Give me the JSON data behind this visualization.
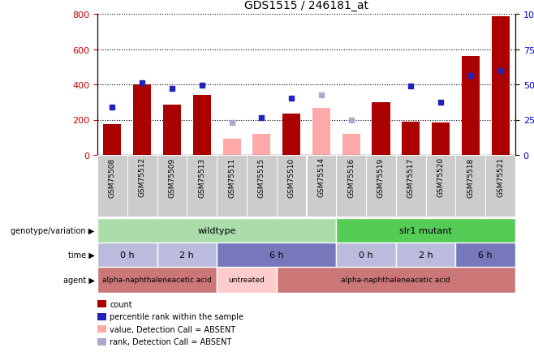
{
  "title": "GDS1515 / 246181_at",
  "samples": [
    "GSM75508",
    "GSM75512",
    "GSM75509",
    "GSM75513",
    "GSM75511",
    "GSM75515",
    "GSM75510",
    "GSM75514",
    "GSM75516",
    "GSM75519",
    "GSM75517",
    "GSM75520",
    "GSM75518",
    "GSM75521"
  ],
  "bar_counts": [
    175,
    400,
    285,
    340,
    0,
    0,
    235,
    0,
    0,
    300,
    190,
    185,
    560,
    785
  ],
  "bar_absent_values": [
    0,
    0,
    0,
    0,
    90,
    120,
    0,
    265,
    120,
    0,
    0,
    0,
    0,
    0
  ],
  "blue_squares": [
    270,
    410,
    375,
    395,
    null,
    210,
    320,
    null,
    null,
    null,
    390,
    300,
    450,
    480
  ],
  "blue_absent_squares": [
    null,
    null,
    null,
    null,
    185,
    null,
    null,
    340,
    200,
    null,
    null,
    null,
    null,
    null
  ],
  "bar_color": "#aa0000",
  "absent_bar_color": "#ffaaaa",
  "blue_color": "#2222bb",
  "absent_blue_color": "#aaaacc",
  "ylim_left": [
    0,
    800
  ],
  "ylim_right": [
    0,
    100
  ],
  "yticks_left": [
    0,
    200,
    400,
    600,
    800
  ],
  "yticks_right": [
    0,
    25,
    50,
    75,
    100
  ],
  "genotype_groups": [
    {
      "label": "wildtype",
      "start": 0,
      "end": 8,
      "color": "#aaddaa"
    },
    {
      "label": "slr1 mutant",
      "start": 8,
      "end": 14,
      "color": "#55cc55"
    }
  ],
  "time_groups": [
    {
      "label": "0 h",
      "start": 0,
      "end": 2,
      "color": "#bbbbdd"
    },
    {
      "label": "2 h",
      "start": 2,
      "end": 4,
      "color": "#bbbbdd"
    },
    {
      "label": "6 h",
      "start": 4,
      "end": 8,
      "color": "#7777bb"
    },
    {
      "label": "0 h",
      "start": 8,
      "end": 10,
      "color": "#bbbbdd"
    },
    {
      "label": "2 h",
      "start": 10,
      "end": 12,
      "color": "#bbbbdd"
    },
    {
      "label": "6 h",
      "start": 12,
      "end": 14,
      "color": "#7777bb"
    }
  ],
  "agent_groups": [
    {
      "label": "alpha-naphthaleneacetic acid",
      "start": 0,
      "end": 4,
      "color": "#cc7777"
    },
    {
      "label": "untreated",
      "start": 4,
      "end": 6,
      "color": "#ffcccc"
    },
    {
      "label": "alpha-naphthaleneacetic acid",
      "start": 6,
      "end": 14,
      "color": "#cc7777"
    }
  ],
  "row_labels": [
    "genotype/variation",
    "time",
    "agent"
  ],
  "legend_items": [
    {
      "color": "#aa0000",
      "label": "count"
    },
    {
      "color": "#2222bb",
      "label": "percentile rank within the sample"
    },
    {
      "color": "#ffaaaa",
      "label": "value, Detection Call = ABSENT"
    },
    {
      "color": "#aaaacc",
      "label": "rank, Detection Call = ABSENT"
    }
  ],
  "background_color": "#ffffff",
  "sample_box_color": "#cccccc",
  "grid_color": "#000000",
  "tick_label_color_left": "#cc0000",
  "tick_label_color_right": "#0000cc"
}
